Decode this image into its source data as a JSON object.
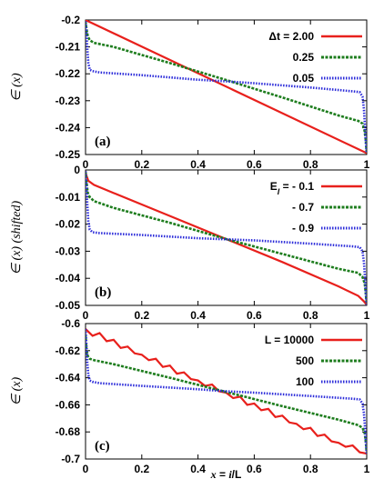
{
  "chart_data": [
    {
      "type": "line",
      "panel_label": "(a)",
      "ylabel": "∈ (x)",
      "xlim": [
        0,
        1
      ],
      "ylim": [
        -0.25,
        -0.2
      ],
      "x_ticks": [
        0,
        0.2,
        0.4,
        0.6,
        0.8,
        1
      ],
      "x_tick_labels": [
        "0",
        "0.2",
        "0.4",
        "0.6",
        "0.8",
        "1"
      ],
      "y_ticks": [
        -0.2,
        -0.21,
        -0.22,
        -0.23,
        -0.24,
        -0.25
      ],
      "y_tick_labels": [
        "-0.2",
        "-0.21",
        "-0.22",
        "-0.23",
        "-0.24",
        "-0.25"
      ],
      "legend_position": "top-right",
      "series": [
        {
          "name": "Δt = 2.00",
          "color": "#e8201c",
          "dash": "solid",
          "x": [
            0,
            1
          ],
          "y": [
            -0.2,
            -0.2495
          ]
        },
        {
          "name": "0.25",
          "color": "#1e7d1e",
          "dash": "dashed",
          "x": [
            0,
            0.003,
            0.008,
            0.015,
            0.03,
            0.1,
            0.3,
            0.5,
            0.7,
            0.9,
            0.97,
            0.985,
            0.992,
            0.997,
            1
          ],
          "y": [
            -0.2005,
            -0.203,
            -0.206,
            -0.2075,
            -0.2085,
            -0.21,
            -0.216,
            -0.2223,
            -0.2288,
            -0.2355,
            -0.2375,
            -0.2385,
            -0.241,
            -0.245,
            -0.2495
          ]
        },
        {
          "name": "0.05",
          "color": "#2b2bd9",
          "dash": "dotted",
          "x": [
            0,
            0.003,
            0.006,
            0.01,
            0.015,
            0.025,
            0.05,
            0.2,
            0.4,
            0.5,
            0.6,
            0.8,
            0.95,
            0.975,
            0.985,
            0.99,
            0.994,
            0.997,
            1
          ],
          "y": [
            -0.2005,
            -0.204,
            -0.21,
            -0.216,
            -0.2185,
            -0.219,
            -0.2195,
            -0.2205,
            -0.2222,
            -0.2228,
            -0.2235,
            -0.2251,
            -0.2265,
            -0.2268,
            -0.2285,
            -0.233,
            -0.24,
            -0.246,
            -0.2495
          ]
        }
      ]
    },
    {
      "type": "line",
      "panel_label": "(b)",
      "ylabel": "∈ (x) (shifted)",
      "xlim": [
        0,
        1
      ],
      "ylim": [
        -0.05,
        0
      ],
      "x_ticks": [
        0,
        0.2,
        0.4,
        0.6,
        0.8,
        1
      ],
      "x_tick_labels": [
        "0",
        "0.2",
        "0.4",
        "0.6",
        "0.8",
        "1"
      ],
      "y_ticks": [
        0,
        -0.01,
        -0.02,
        -0.03,
        -0.04,
        -0.05
      ],
      "y_tick_labels": [
        "0",
        "-0.01",
        "-0.02",
        "-0.03",
        "-0.04",
        "-0.05"
      ],
      "legend_position": "top-right",
      "series": [
        {
          "name": "E_l = - 0.1",
          "color": "#e8201c",
          "dash": "solid",
          "x": [
            0,
            0.003,
            0.01,
            0.03,
            0.1,
            0.3,
            0.5,
            0.7,
            0.9,
            0.97,
            0.99,
            1
          ],
          "y": [
            -0.0005,
            -0.002,
            -0.004,
            -0.0055,
            -0.0085,
            -0.017,
            -0.0255,
            -0.034,
            -0.043,
            -0.0465,
            -0.0485,
            -0.0498
          ]
        },
        {
          "name": "- 0.7",
          "color": "#1e7d1e",
          "dash": "dashed",
          "x": [
            0,
            0.003,
            0.008,
            0.015,
            0.03,
            0.1,
            0.3,
            0.5,
            0.7,
            0.9,
            0.97,
            0.985,
            0.993,
            0.997,
            1
          ],
          "y": [
            -0.0005,
            -0.004,
            -0.0085,
            -0.01,
            -0.0115,
            -0.014,
            -0.0195,
            -0.0255,
            -0.031,
            -0.0365,
            -0.038,
            -0.0395,
            -0.042,
            -0.046,
            -0.0498
          ]
        },
        {
          "name": "- 0.9",
          "color": "#2b2bd9",
          "dash": "dotted",
          "x": [
            0,
            0.003,
            0.006,
            0.01,
            0.015,
            0.025,
            0.05,
            0.2,
            0.4,
            0.5,
            0.6,
            0.8,
            0.95,
            0.975,
            0.985,
            0.99,
            0.994,
            0.997,
            1
          ],
          "y": [
            -0.0005,
            -0.005,
            -0.012,
            -0.019,
            -0.022,
            -0.023,
            -0.0233,
            -0.024,
            -0.0252,
            -0.0256,
            -0.026,
            -0.0272,
            -0.0282,
            -0.0285,
            -0.03,
            -0.034,
            -0.04,
            -0.046,
            -0.0498
          ]
        }
      ]
    },
    {
      "type": "line",
      "panel_label": "(c)",
      "ylabel": "∈ (x)",
      "xlabel": "x = i/L",
      "xlim": [
        0,
        1
      ],
      "ylim": [
        -0.7,
        -0.6
      ],
      "x_ticks": [
        0,
        0.2,
        0.4,
        0.6,
        0.8,
        1
      ],
      "x_tick_labels": [
        "0",
        "0.2",
        "0.4",
        "0.6",
        "0.8",
        "1"
      ],
      "y_ticks": [
        -0.6,
        -0.62,
        -0.64,
        -0.66,
        -0.68,
        -0.7
      ],
      "y_tick_labels": [
        "-0.6",
        "-0.62",
        "-0.64",
        "-0.66",
        "-0.68",
        "-0.7"
      ],
      "legend_position": "top-right",
      "series": [
        {
          "name": "L = 10000",
          "color": "#e8201c",
          "dash": "solid",
          "x": [
            0,
            0.025,
            0.05,
            0.075,
            0.1,
            0.125,
            0.15,
            0.175,
            0.2,
            0.225,
            0.25,
            0.275,
            0.3,
            0.325,
            0.35,
            0.375,
            0.4,
            0.425,
            0.45,
            0.475,
            0.5,
            0.525,
            0.55,
            0.575,
            0.6,
            0.625,
            0.65,
            0.675,
            0.7,
            0.725,
            0.75,
            0.775,
            0.8,
            0.825,
            0.85,
            0.875,
            0.9,
            0.925,
            0.95,
            0.975,
            1
          ],
          "y": [
            -0.604,
            -0.609,
            -0.607,
            -0.613,
            -0.612,
            -0.618,
            -0.617,
            -0.622,
            -0.623,
            -0.627,
            -0.626,
            -0.632,
            -0.631,
            -0.637,
            -0.636,
            -0.641,
            -0.642,
            -0.646,
            -0.645,
            -0.65,
            -0.651,
            -0.655,
            -0.654,
            -0.66,
            -0.659,
            -0.664,
            -0.663,
            -0.669,
            -0.668,
            -0.673,
            -0.674,
            -0.678,
            -0.677,
            -0.683,
            -0.682,
            -0.687,
            -0.688,
            -0.691,
            -0.69,
            -0.695,
            -0.696
          ]
        },
        {
          "name": "500",
          "color": "#1e7d1e",
          "dash": "dashed",
          "x": [
            0,
            0.003,
            0.008,
            0.015,
            0.03,
            0.1,
            0.3,
            0.5,
            0.7,
            0.9,
            0.97,
            0.985,
            0.993,
            0.997,
            1
          ],
          "y": [
            -0.608,
            -0.618,
            -0.624,
            -0.626,
            -0.627,
            -0.63,
            -0.64,
            -0.6505,
            -0.661,
            -0.671,
            -0.675,
            -0.677,
            -0.681,
            -0.688,
            -0.696
          ]
        },
        {
          "name": "100",
          "color": "#2b2bd9",
          "dash": "dotted",
          "x": [
            0,
            0.003,
            0.006,
            0.01,
            0.015,
            0.025,
            0.05,
            0.2,
            0.4,
            0.5,
            0.6,
            0.8,
            0.95,
            0.975,
            0.985,
            0.99,
            0.994,
            0.997,
            1
          ],
          "y": [
            -0.604,
            -0.615,
            -0.628,
            -0.638,
            -0.642,
            -0.643,
            -0.644,
            -0.646,
            -0.6485,
            -0.65,
            -0.651,
            -0.6535,
            -0.6555,
            -0.656,
            -0.659,
            -0.666,
            -0.677,
            -0.688,
            -0.696
          ]
        }
      ]
    }
  ]
}
